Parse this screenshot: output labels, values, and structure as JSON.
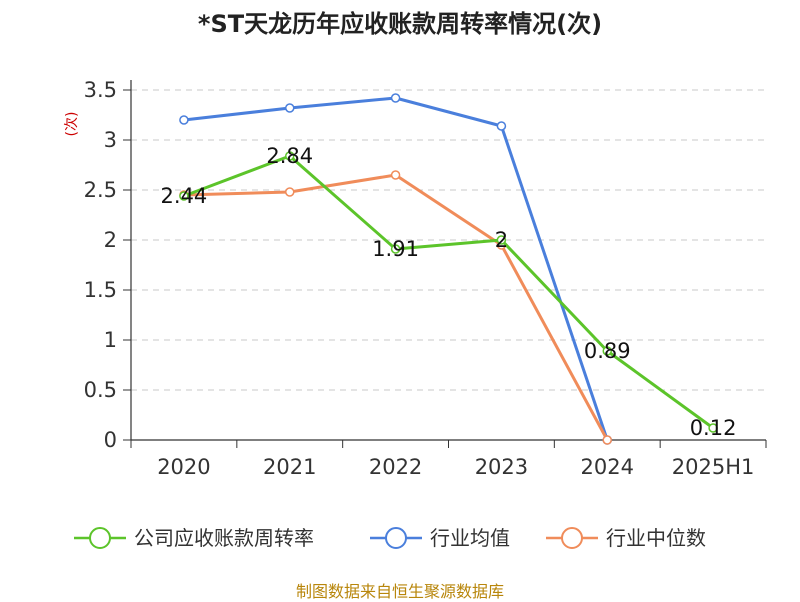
{
  "chart_data": {
    "type": "line",
    "title": "*ST天龙历年应收账款周转率情况(次)",
    "ylabel": "(次)",
    "xlabel": "",
    "categories": [
      "2020",
      "2021",
      "2022",
      "2023",
      "2024",
      "2025H1"
    ],
    "ylim": [
      0,
      3.5
    ],
    "yticks": [
      "0",
      "0.5",
      "1",
      "1.5",
      "2",
      "2.5",
      "3",
      "3.5"
    ],
    "grid": true,
    "legend_position": "bottom",
    "series": [
      {
        "name": "公司应收账款周转率",
        "color": "#5cc42a",
        "values": [
          2.44,
          2.84,
          1.91,
          2,
          0.89,
          0.12
        ],
        "labels": [
          "2.44",
          "2.84",
          "1.91",
          "2",
          "0.89",
          "0.12"
        ]
      },
      {
        "name": "行业均值",
        "color": "#4a7fdc",
        "values": [
          3.2,
          3.32,
          3.42,
          3.14,
          0,
          null
        ]
      },
      {
        "name": "行业中位数",
        "color": "#f08c5a",
        "values": [
          2.45,
          2.48,
          2.65,
          1.95,
          0,
          null
        ]
      }
    ]
  },
  "footer": {
    "source": "制图数据来自恒生聚源数据库"
  }
}
